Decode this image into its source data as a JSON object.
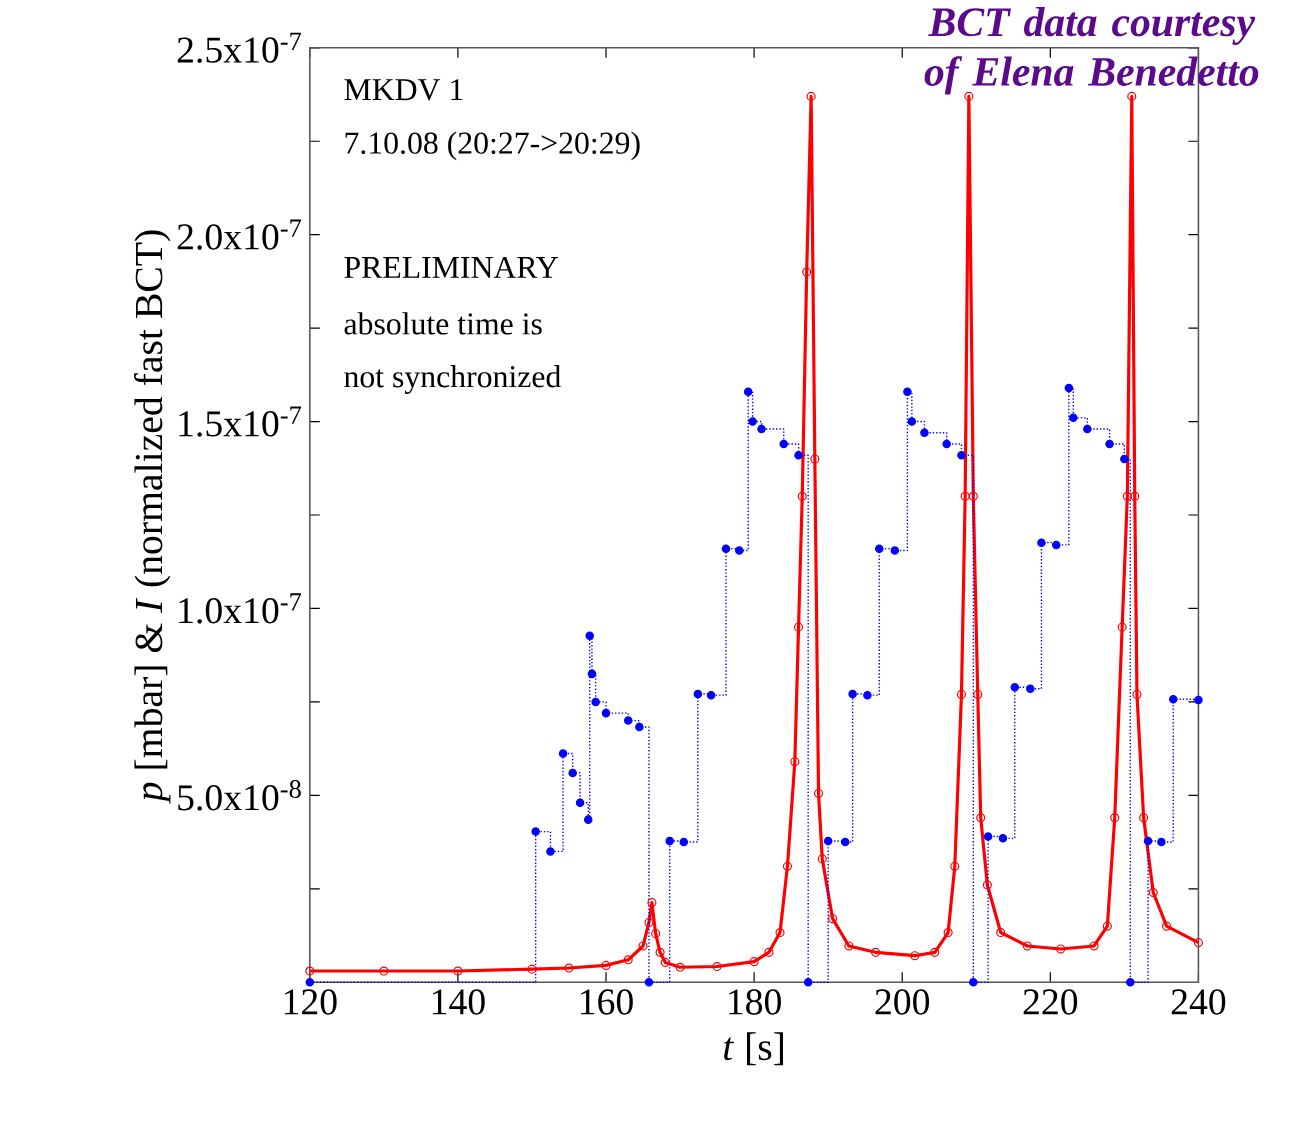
{
  "chart_data": {
    "type": "line",
    "xlabel": "*t* [s]",
    "ylabel": "*p* [mbar] & *I* (normalized fast BCT)",
    "xlim": [
      120,
      240
    ],
    "xticks": [
      120,
      140,
      160,
      180,
      200,
      220,
      240
    ],
    "ylim": [
      0,
      2.5e-07
    ],
    "yticks": [
      {
        "value": 2.5e-08,
        "label": null
      },
      {
        "value": 5e-08,
        "label": "5.0x10$^{-8}$"
      },
      {
        "value": 7.5e-08,
        "label": null
      },
      {
        "value": 1e-07,
        "label": "1.0x10$^{-7}$"
      },
      {
        "value": 1.25e-07,
        "label": null
      },
      {
        "value": 1.5e-07,
        "label": "1.5x10$^{-7}$"
      },
      {
        "value": 1.75e-07,
        "label": null
      },
      {
        "value": 2e-07,
        "label": "2.0x10$^{-7}$"
      },
      {
        "value": 2.25e-07,
        "label": null
      },
      {
        "value": 2.5e-07,
        "label": "2.5x10$^{-7}$"
      }
    ],
    "annotations": [
      "MKDV 1",
      "7.10.08 (20:27->20:29)",
      "PRELIMINARY",
      "absolute time is",
      "not synchronized",
      "BCT data courtesy of Elena Benedetto"
    ],
    "series": [
      {
        "color": "#ff0000",
        "marker": "circle",
        "line_style": "solid",
        "x": [
          120,
          130,
          140,
          150,
          155,
          160,
          163,
          165,
          165.8,
          166.2,
          166.7,
          167.3,
          168,
          170,
          175,
          180,
          182,
          183.5,
          184.5,
          185.5,
          186,
          186.5,
          187.1,
          187.7,
          188.2,
          188.7,
          189.2,
          190.6,
          192.8,
          196.4,
          201.7,
          204.4,
          206.2,
          207.1,
          208,
          208.5,
          209,
          209.6,
          210.2,
          210.6,
          211.5,
          213.3,
          216.9,
          221.4,
          225.9,
          227.7,
          228.7,
          229.7,
          230.4,
          231,
          231.4,
          231.7,
          232.6,
          233.9,
          235.7,
          240
        ],
        "values": [
          3e-09,
          3e-09,
          3e-09,
          3.5e-09,
          3.8e-09,
          4.5e-09,
          6e-09,
          9.7e-09,
          1.6e-08,
          2.13e-08,
          1.3e-08,
          8e-09,
          5.3e-09,
          4e-09,
          4.2e-09,
          5.5e-09,
          8e-09,
          1.33e-08,
          3.1e-08,
          5.9e-08,
          9.5e-08,
          1.3e-07,
          1.9e-07,
          2.37e-07,
          1.4e-07,
          5.05e-08,
          3.3e-08,
          1.7e-08,
          9.7e-09,
          8e-09,
          7.1e-09,
          8e-09,
          1.33e-08,
          3.1e-08,
          7.7e-08,
          1.3e-07,
          2.37e-07,
          1.3e-07,
          7.7e-08,
          4.4e-08,
          2.6e-08,
          1.33e-08,
          9.7e-09,
          8.9e-09,
          9.7e-09,
          1.5e-08,
          4.4e-08,
          9.5e-08,
          1.3e-07,
          2.37e-07,
          1.3e-07,
          7.7e-08,
          4.4e-08,
          2.4e-08,
          1.5e-08,
          1.06e-08
        ]
      },
      {
        "type": "step",
        "color": "#0000ff",
        "marker": "circle",
        "line_style": "dotted",
        "x": [
          120,
          150.5,
          152.5,
          154.2,
          155.5,
          156.5,
          157.6,
          157.8,
          158.1,
          158.6,
          160,
          163,
          164.5,
          165.8,
          168.6,
          170.5,
          172.4,
          174.2,
          176.2,
          178,
          179.2,
          179.8,
          181,
          184,
          186,
          187.3,
          190,
          192.3,
          193.3,
          195.3,
          196.9,
          199,
          200.7,
          201.3,
          203,
          206,
          208,
          209.6,
          211.6,
          213.6,
          215.2,
          217.3,
          218.8,
          220.8,
          222.5,
          223.1,
          225,
          228,
          230,
          230.8,
          233.2,
          235,
          236.6,
          240
        ],
        "values": [
          0,
          4.03e-08,
          3.5e-08,
          6.12e-08,
          5.6e-08,
          4.8e-08,
          4.35e-08,
          9.27e-08,
          8.25e-08,
          7.5e-08,
          7.2e-08,
          7e-08,
          6.83e-08,
          0,
          3.78e-08,
          3.75e-08,
          7.71e-08,
          7.68e-08,
          1.16e-07,
          1.155e-07,
          1.58e-07,
          1.5e-07,
          1.48e-07,
          1.44e-07,
          1.41e-07,
          0,
          3.78e-08,
          3.75e-08,
          7.71e-08,
          7.68e-08,
          1.16e-07,
          1.155e-07,
          1.58e-07,
          1.5e-07,
          1.47e-07,
          1.44e-07,
          1.41e-07,
          0,
          3.9e-08,
          3.85e-08,
          7.89e-08,
          7.85e-08,
          1.176e-07,
          1.17e-07,
          1.59e-07,
          1.51e-07,
          1.48e-07,
          1.44e-07,
          1.4e-07,
          0,
          3.78e-08,
          3.75e-08,
          7.57e-08,
          7.55e-08
        ]
      }
    ]
  }
}
